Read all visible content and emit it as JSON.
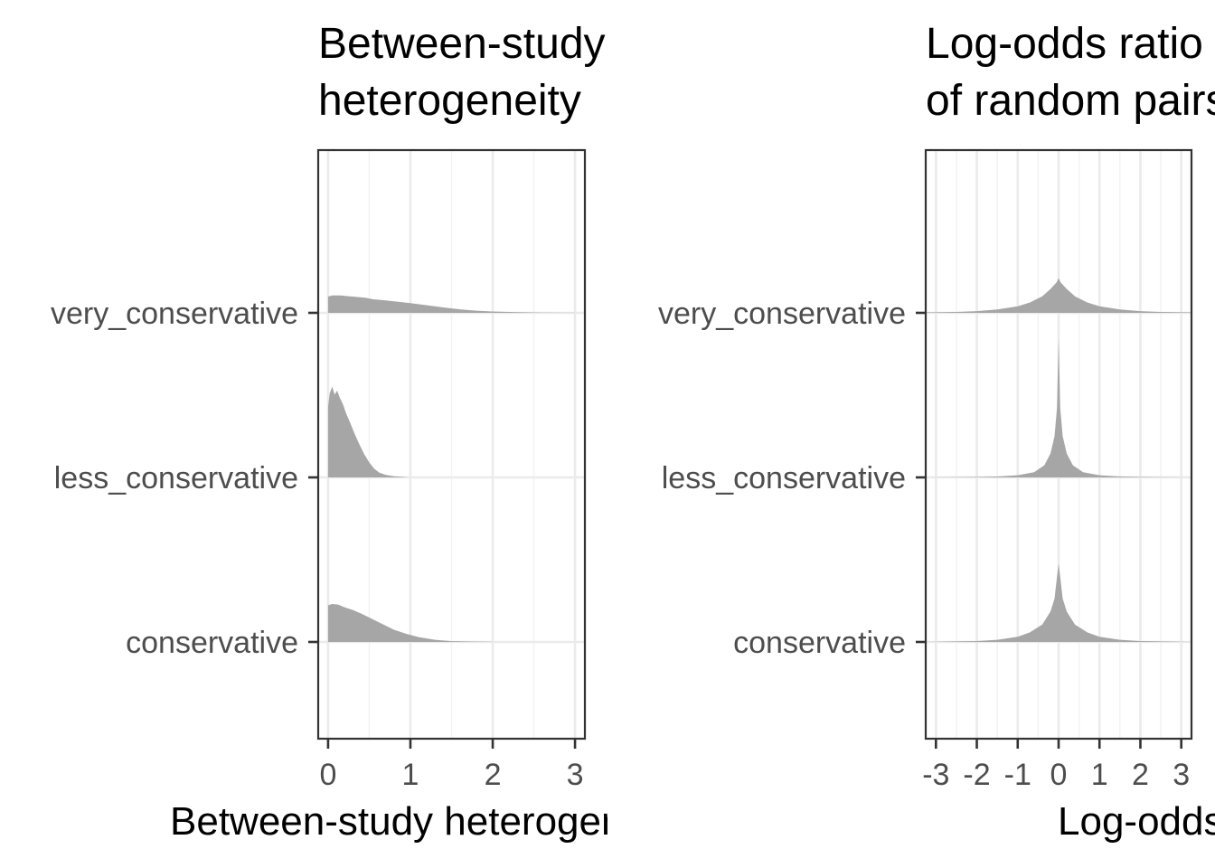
{
  "chart_data": [
    {
      "type": "area",
      "subtype": "ridgeline-density",
      "title_lines": [
        "Between-study",
        "heterogeneity"
      ],
      "xlabel": "Between-study heterogeneity",
      "ylabel": "",
      "xlim": [
        -0.12,
        3.12
      ],
      "x_ticks": [
        0,
        1,
        2,
        3
      ],
      "x_tick_labels": [
        "0",
        "1",
        "2",
        "3"
      ],
      "x_minor_gridlines": [
        0.5,
        1.5,
        2.5
      ],
      "categories": [
        "conservative",
        "less_conservative",
        "very_conservative"
      ],
      "fill_color": "#a6a6a6",
      "grid": true,
      "series": [
        {
          "name": "very_conservative",
          "x": [
            0,
            0.05,
            0.15,
            0.3,
            0.45,
            0.55,
            0.7,
            0.85,
            1.0,
            1.2,
            1.4,
            1.6,
            1.8,
            2.0,
            2.3,
            2.6,
            2.9,
            3.0
          ],
          "density": [
            0.6,
            0.64,
            0.64,
            0.6,
            0.56,
            0.5,
            0.46,
            0.41,
            0.36,
            0.28,
            0.2,
            0.13,
            0.08,
            0.05,
            0.025,
            0.01,
            0.004,
            0.002
          ]
        },
        {
          "name": "less_conservative",
          "x": [
            0,
            0.02,
            0.05,
            0.08,
            0.11,
            0.14,
            0.18,
            0.22,
            0.27,
            0.32,
            0.38,
            0.44,
            0.5,
            0.56,
            0.62,
            0.7,
            0.8,
            0.95
          ],
          "density": [
            2.6,
            3.1,
            3.35,
            3.05,
            3.2,
            2.95,
            2.7,
            2.35,
            2.0,
            1.62,
            1.22,
            0.85,
            0.55,
            0.32,
            0.18,
            0.09,
            0.04,
            0.01
          ]
        },
        {
          "name": "conservative",
          "x": [
            0,
            0.05,
            0.12,
            0.2,
            0.3,
            0.4,
            0.5,
            0.6,
            0.7,
            0.8,
            0.95,
            1.1,
            1.3,
            1.5,
            1.7,
            2.0
          ],
          "density": [
            1.35,
            1.4,
            1.38,
            1.28,
            1.18,
            1.05,
            0.9,
            0.75,
            0.6,
            0.45,
            0.3,
            0.18,
            0.08,
            0.03,
            0.015,
            0.005
          ]
        }
      ]
    },
    {
      "type": "area",
      "subtype": "ridgeline-density",
      "title_lines": [
        "Log-odds ratio",
        "of random pairs"
      ],
      "xlabel": "Log-odds ratio",
      "ylabel": "",
      "xlim": [
        -3.25,
        3.25
      ],
      "x_ticks": [
        -3,
        -2,
        -1,
        0,
        1,
        2,
        3
      ],
      "x_tick_labels": [
        "-3",
        "-2",
        "-1",
        "0",
        "1",
        "2",
        "3"
      ],
      "x_minor_gridlines": [
        -2.5,
        -1.5,
        -0.5,
        0.5,
        1.5,
        2.5
      ],
      "categories": [
        "conservative",
        "less_conservative",
        "very_conservative"
      ],
      "fill_color": "#a6a6a6",
      "grid": true,
      "series": [
        {
          "name": "very_conservative",
          "x": [
            -3.25,
            -2.5,
            -2.0,
            -1.5,
            -1.0,
            -0.7,
            -0.4,
            -0.2,
            -0.05,
            0.0,
            0.05,
            0.2,
            0.4,
            0.7,
            1.0,
            1.5,
            2.0,
            2.5,
            3.25
          ],
          "density": [
            0.01,
            0.02,
            0.04,
            0.08,
            0.15,
            0.24,
            0.38,
            0.55,
            0.7,
            0.8,
            0.7,
            0.55,
            0.38,
            0.24,
            0.15,
            0.08,
            0.04,
            0.02,
            0.01
          ]
        },
        {
          "name": "less_conservative",
          "x": [
            -3.25,
            -2.0,
            -1.5,
            -1.0,
            -0.6,
            -0.35,
            -0.2,
            -0.1,
            -0.04,
            0.0,
            0.04,
            0.1,
            0.2,
            0.35,
            0.6,
            1.0,
            1.5,
            2.0,
            3.25
          ],
          "density": [
            0.0,
            0.01,
            0.02,
            0.05,
            0.12,
            0.28,
            0.55,
            0.95,
            1.6,
            3.2,
            1.6,
            0.95,
            0.55,
            0.28,
            0.12,
            0.05,
            0.02,
            0.01,
            0.0
          ]
        },
        {
          "name": "conservative",
          "x": [
            -3.25,
            -2.0,
            -1.5,
            -1.0,
            -0.7,
            -0.4,
            -0.2,
            -0.1,
            -0.04,
            0.0,
            0.04,
            0.1,
            0.2,
            0.4,
            0.7,
            1.0,
            1.5,
            2.0,
            3.25
          ],
          "density": [
            0.0,
            0.02,
            0.05,
            0.12,
            0.22,
            0.4,
            0.7,
            1.0,
            1.5,
            1.8,
            1.5,
            1.0,
            0.7,
            0.4,
            0.22,
            0.12,
            0.05,
            0.02,
            0.0
          ]
        }
      ]
    }
  ]
}
